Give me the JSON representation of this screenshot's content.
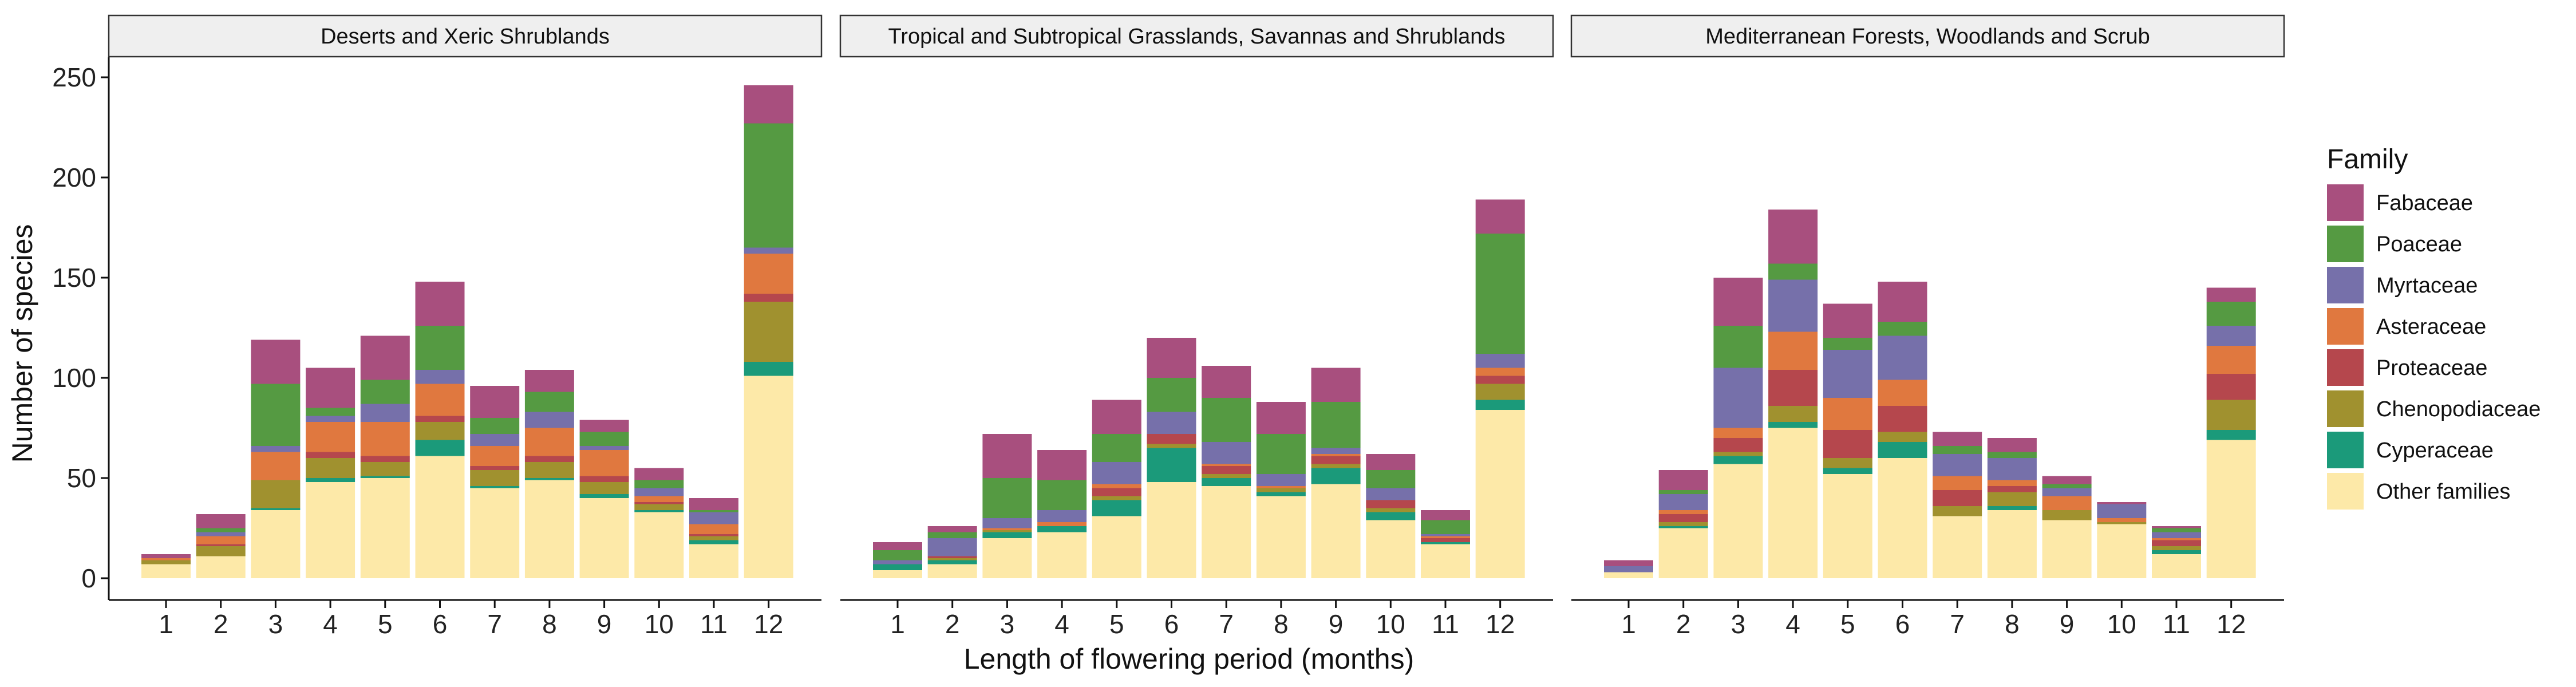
{
  "chart_data": {
    "type": "bar",
    "stacked": true,
    "xlabel": "Length of flowering period (months)",
    "ylabel": "Number of species",
    "ylim": [
      0,
      260
    ],
    "yticks": [
      0,
      50,
      100,
      150,
      200,
      250
    ],
    "categories": [
      "1",
      "2",
      "3",
      "4",
      "5",
      "6",
      "7",
      "8",
      "9",
      "10",
      "11",
      "12"
    ],
    "legend": {
      "title": "Family",
      "position": "right",
      "entries": [
        "Fabaceae",
        "Poaceae",
        "Myrtaceae",
        "Asteraceae",
        "Proteaceae",
        "Chenopodiaceae",
        "Cyperaceae",
        "Other families"
      ]
    },
    "colors": {
      "Other families": "#fde9a8",
      "Cyperaceae": "#1b9a7a",
      "Chenopodiaceae": "#a0912f",
      "Proteaceae": "#b5474d",
      "Asteraceae": "#e0783f",
      "Myrtaceae": "#7670aa",
      "Poaceae": "#559a42",
      "Fabaceae": "#a84f7e"
    },
    "panels": [
      {
        "title": "Deserts and Xeric Shrublands",
        "series": [
          {
            "name": "Other families",
            "values": [
              7,
              11,
              34,
              48,
              50,
              61,
              45,
              49,
              40,
              33,
              17,
              101
            ]
          },
          {
            "name": "Cyperaceae",
            "values": [
              0,
              0,
              1,
              2,
              1,
              8,
              1,
              1,
              2,
              1,
              2,
              7
            ]
          },
          {
            "name": "Chenopodiaceae",
            "values": [
              2,
              5,
              14,
              10,
              7,
              9,
              8,
              8,
              6,
              3,
              2,
              30
            ]
          },
          {
            "name": "Proteaceae",
            "values": [
              0,
              1,
              0,
              3,
              3,
              3,
              2,
              3,
              3,
              1,
              1,
              4
            ]
          },
          {
            "name": "Asteraceae",
            "values": [
              1,
              4,
              14,
              15,
              17,
              16,
              10,
              14,
              13,
              3,
              5,
              20
            ]
          },
          {
            "name": "Myrtaceae",
            "values": [
              0,
              2,
              3,
              3,
              9,
              7,
              6,
              8,
              2,
              4,
              6,
              3
            ]
          },
          {
            "name": "Poaceae",
            "values": [
              0,
              2,
              31,
              4,
              12,
              22,
              8,
              10,
              7,
              4,
              1,
              62
            ]
          },
          {
            "name": "Fabaceae",
            "values": [
              2,
              7,
              22,
              20,
              22,
              22,
              16,
              11,
              6,
              6,
              6,
              19
            ]
          }
        ]
      },
      {
        "title": "Tropical and Subtropical Grasslands, Savannas and Shrublands",
        "series": [
          {
            "name": "Other families",
            "values": [
              4,
              7,
              20,
              23,
              31,
              48,
              46,
              41,
              47,
              29,
              17,
              84
            ]
          },
          {
            "name": "Cyperaceae",
            "values": [
              3,
              2,
              3,
              3,
              8,
              17,
              4,
              2,
              8,
              4,
              1,
              5
            ]
          },
          {
            "name": "Chenopodiaceae",
            "values": [
              0,
              1,
              1,
              0,
              2,
              2,
              2,
              2,
              2,
              2,
              0,
              8
            ]
          },
          {
            "name": "Proteaceae",
            "values": [
              0,
              1,
              0,
              0,
              4,
              5,
              4,
              0,
              4,
              4,
              2,
              4
            ]
          },
          {
            "name": "Asteraceae",
            "values": [
              0,
              0,
              1,
              2,
              2,
              0,
              1,
              1,
              1,
              0,
              1,
              4
            ]
          },
          {
            "name": "Myrtaceae",
            "values": [
              2,
              9,
              5,
              6,
              11,
              11,
              11,
              6,
              3,
              6,
              1,
              7
            ]
          },
          {
            "name": "Poaceae",
            "values": [
              5,
              3,
              20,
              15,
              14,
              17,
              22,
              20,
              23,
              9,
              7,
              60
            ]
          },
          {
            "name": "Fabaceae",
            "values": [
              4,
              3,
              22,
              15,
              17,
              20,
              16,
              16,
              17,
              8,
              5,
              17
            ]
          }
        ]
      },
      {
        "title": "Mediterranean Forests, Woodlands and Scrub",
        "series": [
          {
            "name": "Other families",
            "values": [
              3,
              25,
              57,
              75,
              52,
              60,
              31,
              34,
              29,
              27,
              12,
              69
            ]
          },
          {
            "name": "Cyperaceae",
            "values": [
              0,
              1,
              4,
              3,
              3,
              8,
              0,
              2,
              0,
              0,
              2,
              5
            ]
          },
          {
            "name": "Chenopodiaceae",
            "values": [
              0,
              2,
              2,
              8,
              5,
              5,
              5,
              7,
              5,
              1,
              2,
              15
            ]
          },
          {
            "name": "Proteaceae",
            "values": [
              0,
              4,
              7,
              18,
              14,
              13,
              8,
              3,
              0,
              0,
              3,
              13
            ]
          },
          {
            "name": "Asteraceae",
            "values": [
              0,
              2,
              5,
              19,
              16,
              13,
              7,
              3,
              7,
              2,
              1,
              14
            ]
          },
          {
            "name": "Myrtaceae",
            "values": [
              3,
              8,
              30,
              26,
              24,
              22,
              11,
              11,
              4,
              7,
              3,
              10
            ]
          },
          {
            "name": "Poaceae",
            "values": [
              0,
              2,
              21,
              8,
              6,
              7,
              4,
              3,
              2,
              0,
              2,
              12
            ]
          },
          {
            "name": "Fabaceae",
            "values": [
              3,
              10,
              24,
              27,
              17,
              20,
              7,
              7,
              4,
              1,
              1,
              7
            ]
          }
        ]
      }
    ]
  }
}
